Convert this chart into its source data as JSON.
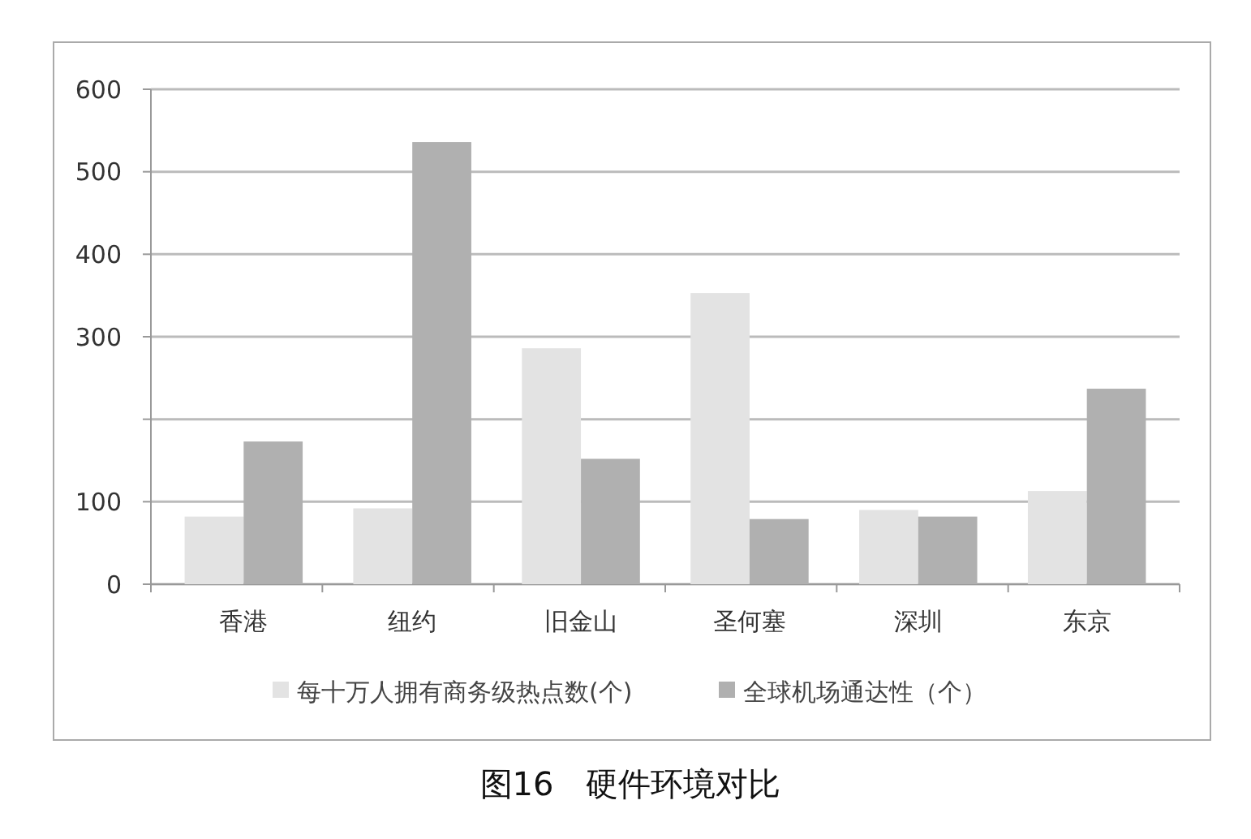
{
  "chart_data": {
    "type": "bar",
    "title": "图16　硬件环境对比",
    "categories": [
      "香港",
      "纽约",
      "旧金山",
      "圣何塞",
      "深圳",
      "东京"
    ],
    "series": [
      {
        "name": "每十万人拥有商务级热点数(个)",
        "color": "#e3e3e3",
        "values": [
          82,
          92,
          286,
          353,
          90,
          113
        ]
      },
      {
        "name": "全球机场通达性（个）",
        "color": "#b0b0b0",
        "values": [
          173,
          536,
          152,
          79,
          82,
          237
        ]
      }
    ],
    "ylim": [
      0,
      600
    ],
    "yticks": [
      0,
      100,
      {
        "value": 200,
        "label": null
      },
      300,
      400,
      500,
      600
    ],
    "grid": "y",
    "legend": "bottom"
  }
}
